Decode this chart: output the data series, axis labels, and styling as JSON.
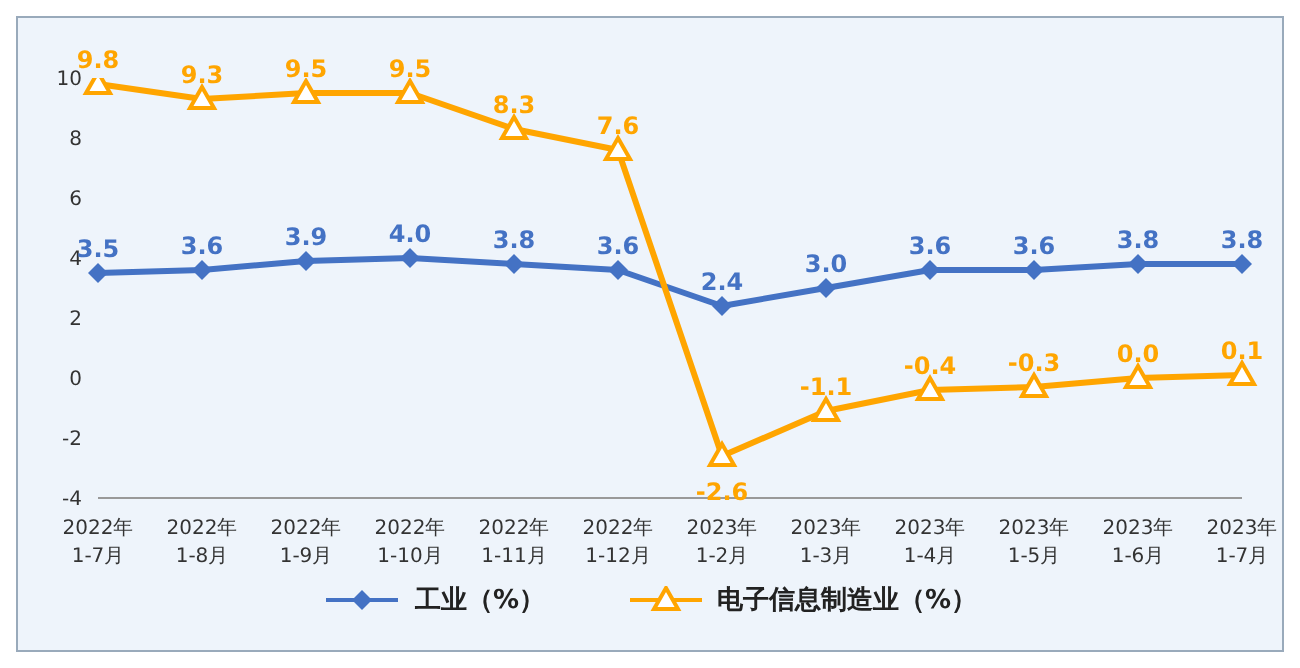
{
  "chart_data": {
    "type": "line",
    "categories": [
      "2022年\n1-7月",
      "2022年\n1-8月",
      "2022年\n1-9月",
      "2022年\n1-10月",
      "2022年\n1-11月",
      "2022年\n1-12月",
      "2023年\n1-2月",
      "2023年\n1-3月",
      "2023年\n1-4月",
      "2023年\n1-5月",
      "2023年\n1-6月",
      "2023年\n1-7月"
    ],
    "series": [
      {
        "name": "工业（%）",
        "color": "#4472c4",
        "marker": "diamond",
        "values": [
          3.5,
          3.6,
          3.9,
          4.0,
          3.8,
          3.6,
          2.4,
          3.0,
          3.6,
          3.6,
          3.8,
          3.8
        ],
        "value_labels": [
          "3.5",
          "3.6",
          "3.9",
          "4.0",
          "3.8",
          "3.6",
          "2.4",
          "3.0",
          "3.6",
          "3.6",
          "3.8",
          "3.8"
        ]
      },
      {
        "name": "电子信息制造业（%）",
        "color": "#ffa500",
        "marker": "triangle",
        "values": [
          9.8,
          9.3,
          9.5,
          9.5,
          8.3,
          7.6,
          -2.6,
          -1.1,
          -0.4,
          -0.3,
          0.0,
          0.1
        ],
        "value_labels": [
          "9.8",
          "9.3",
          "9.5",
          "9.5",
          "8.3",
          "7.6",
          "-2.6",
          "-1.1",
          "-0.4",
          "-0.3",
          "0.0",
          "0.1"
        ]
      }
    ],
    "ylim": [
      -4,
      10
    ],
    "yticks": [
      -4,
      -2,
      0,
      2,
      4,
      6,
      8,
      10
    ],
    "grid": false,
    "legend": "bottom",
    "line_style": "solid"
  }
}
